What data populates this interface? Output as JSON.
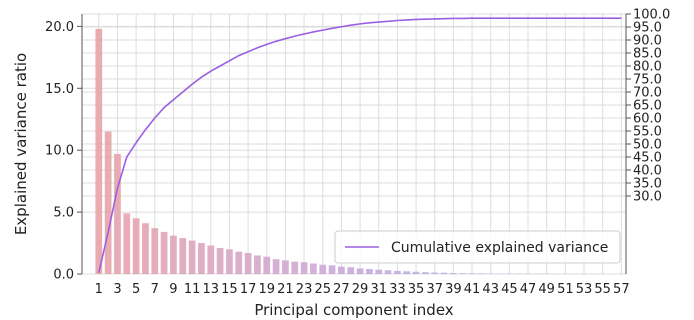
{
  "chart_data": {
    "type": "bar",
    "xlabel": "Principal component index",
    "ylabel": "Explained variance ratio",
    "x": [
      1,
      2,
      3,
      4,
      5,
      6,
      7,
      8,
      9,
      10,
      11,
      12,
      13,
      14,
      15,
      16,
      17,
      18,
      19,
      20,
      21,
      22,
      23,
      24,
      25,
      26,
      27,
      28,
      29,
      30,
      31,
      32,
      33,
      34,
      35,
      36,
      37,
      38,
      39,
      40,
      41,
      42,
      43,
      44,
      45,
      46,
      47,
      48,
      49,
      50,
      51,
      52,
      53,
      54,
      55,
      56,
      57
    ],
    "x_tick_labels": [
      "1",
      "3",
      "5",
      "7",
      "9",
      "11",
      "13",
      "15",
      "17",
      "19",
      "21",
      "23",
      "25",
      "27",
      "29",
      "31",
      "33",
      "35",
      "37",
      "39",
      "41",
      "43",
      "45",
      "47",
      "49",
      "51",
      "53",
      "55",
      "57"
    ],
    "xlim": [
      -0.8,
      57.5
    ],
    "ylim": [
      0,
      21
    ],
    "y_ticks": [
      0,
      5,
      10,
      15,
      20
    ],
    "y_tick_labels": [
      "0.0",
      "5.0",
      "10.0",
      "15.0",
      "20.0"
    ],
    "right_ylim": [
      0,
      100
    ],
    "right_ticks": [
      30,
      35,
      40,
      45,
      50,
      55,
      60,
      65,
      70,
      75,
      80,
      85,
      90,
      95,
      100
    ],
    "right_tick_labels": [
      "30.0",
      "35.0",
      "40.0",
      "45.0",
      "50.0",
      "55.0",
      "60.0",
      "65.0",
      "70.0",
      "75.0",
      "80.0",
      "85.0",
      "90.0",
      "95.0",
      "100.0"
    ],
    "grid": true,
    "series": [
      {
        "type": "bar",
        "values": [
          19.8,
          11.5,
          9.7,
          4.9,
          4.5,
          4.1,
          3.7,
          3.4,
          3.1,
          2.9,
          2.7,
          2.5,
          2.3,
          2.1,
          2.0,
          1.8,
          1.7,
          1.5,
          1.4,
          1.2,
          1.1,
          1.0,
          0.95,
          0.85,
          0.75,
          0.7,
          0.6,
          0.55,
          0.45,
          0.4,
          0.35,
          0.3,
          0.25,
          0.22,
          0.18,
          0.15,
          0.12,
          0.1,
          0.08,
          0.07,
          0.06,
          0.05,
          0.04,
          0.04,
          0.03,
          0.03,
          0.02,
          0.02,
          0.02,
          0.01,
          0.01,
          0.01,
          0.01,
          0.01,
          0.01,
          0.0,
          0.0
        ],
        "color_gradient": [
          "#e8a3a8",
          "#c8a9e0",
          "#8fc7e0"
        ]
      },
      {
        "name": "Cumulative explained variance",
        "type": "line",
        "axis": "right",
        "color": "#9a5fe3",
        "values": [
          0.5,
          16.0,
          33.0,
          45.0,
          50.5,
          55.5,
          60.0,
          64.0,
          67.0,
          70.0,
          73.0,
          75.7,
          78.0,
          80.0,
          82.0,
          84.0,
          85.5,
          87.0,
          88.3,
          89.5,
          90.5,
          91.5,
          92.3,
          93.1,
          93.8,
          94.5,
          95.1,
          95.7,
          96.2,
          96.6,
          96.9,
          97.2,
          97.5,
          97.7,
          97.9,
          98.0,
          98.1,
          98.2,
          98.3,
          98.3,
          98.4,
          98.4,
          98.4,
          98.4,
          98.4,
          98.4,
          98.4,
          98.4,
          98.4,
          98.4,
          98.4,
          98.4,
          98.4,
          98.4,
          98.4,
          98.4,
          98.4
        ]
      }
    ],
    "legend": {
      "position": "bottom-right",
      "entries": [
        "Cumulative explained variance"
      ]
    }
  }
}
